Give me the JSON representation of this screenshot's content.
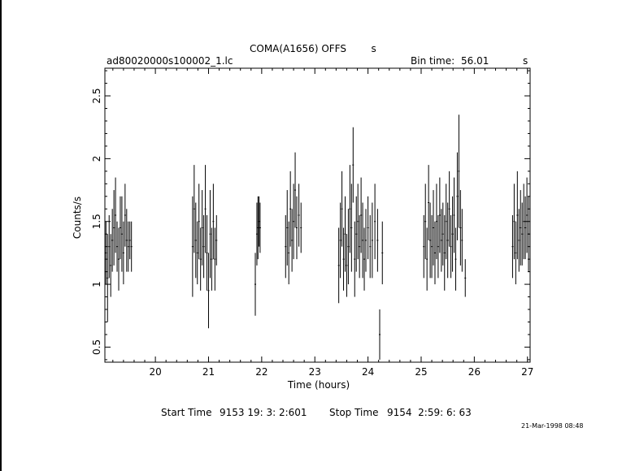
{
  "header": {
    "title": "COMA(A1656) OFFS        s",
    "file_name": "ad80020000s100002_1.lc",
    "bin_time_label": "Bin time:",
    "bin_time_value": "56.01",
    "bin_time_unit": "s"
  },
  "footer": {
    "start_label": "Start Time",
    "start_value": "9153 19: 3: 2:601",
    "stop_label": "Stop Time",
    "stop_value": "9154  2:59: 6: 63",
    "timestamp": "21-Mar-1998 08:48"
  },
  "chart_data": {
    "type": "scatter",
    "title": "COMA(A1656) OFFS        s",
    "xlabel": "Time (hours)",
    "ylabel": "Counts/s",
    "xlim": [
      19.05,
      27.05
    ],
    "ylim": [
      0.38,
      2.72
    ],
    "xticks": [
      20,
      21,
      22,
      23,
      24,
      25,
      26,
      27
    ],
    "xtick_labels": [
      "20",
      "21",
      "22",
      "23",
      "24",
      "25",
      "26",
      "27"
    ],
    "yticks": [
      0.5,
      1,
      1.5,
      2,
      2.5
    ],
    "ytick_labels": [
      "0.5",
      "1",
      "1.5",
      "2",
      "2.5"
    ],
    "grid": false,
    "error_bars": true,
    "series": [
      {
        "points": [
          {
            "x": 19.07,
            "y": 1.25,
            "err": 0.25
          },
          {
            "x": 19.1,
            "y": 1.05,
            "err": 0.35
          },
          {
            "x": 19.13,
            "y": 1.3,
            "err": 0.25
          },
          {
            "x": 19.16,
            "y": 1.15,
            "err": 0.25
          },
          {
            "x": 19.19,
            "y": 1.35,
            "err": 0.25
          },
          {
            "x": 19.22,
            "y": 1.45,
            "err": 0.3
          },
          {
            "x": 19.25,
            "y": 1.55,
            "err": 0.3
          },
          {
            "x": 19.28,
            "y": 1.3,
            "err": 0.2
          },
          {
            "x": 19.31,
            "y": 1.2,
            "err": 0.25
          },
          {
            "x": 19.34,
            "y": 1.45,
            "err": 0.25
          },
          {
            "x": 19.37,
            "y": 1.4,
            "err": 0.3
          },
          {
            "x": 19.4,
            "y": 1.25,
            "err": 0.25
          },
          {
            "x": 19.43,
            "y": 1.55,
            "err": 0.25
          },
          {
            "x": 19.46,
            "y": 1.35,
            "err": 0.25
          },
          {
            "x": 19.49,
            "y": 1.3,
            "err": 0.2
          },
          {
            "x": 19.52,
            "y": 1.35,
            "err": 0.15
          },
          {
            "x": 19.55,
            "y": 1.3,
            "err": 0.2
          },
          {
            "x": 20.7,
            "y": 1.3,
            "err": 0.4
          },
          {
            "x": 20.73,
            "y": 1.6,
            "err": 0.35
          },
          {
            "x": 20.76,
            "y": 1.35,
            "err": 0.3
          },
          {
            "x": 20.79,
            "y": 1.25,
            "err": 0.25
          },
          {
            "x": 20.82,
            "y": 1.5,
            "err": 0.3
          },
          {
            "x": 20.85,
            "y": 1.2,
            "err": 0.25
          },
          {
            "x": 20.88,
            "y": 1.45,
            "err": 0.3
          },
          {
            "x": 20.91,
            "y": 1.3,
            "err": 0.25
          },
          {
            "x": 20.94,
            "y": 1.6,
            "err": 0.35
          },
          {
            "x": 20.97,
            "y": 1.25,
            "err": 0.3
          },
          {
            "x": 21.0,
            "y": 0.95,
            "err": 0.3
          },
          {
            "x": 21.03,
            "y": 1.4,
            "err": 0.35
          },
          {
            "x": 21.06,
            "y": 1.2,
            "err": 0.25
          },
          {
            "x": 21.09,
            "y": 1.5,
            "err": 0.3
          },
          {
            "x": 21.12,
            "y": 1.2,
            "err": 0.25
          },
          {
            "x": 21.15,
            "y": 1.35,
            "err": 0.2
          },
          {
            "x": 21.88,
            "y": 1.0,
            "err": 0.25
          },
          {
            "x": 21.91,
            "y": 1.4,
            "err": 0.25
          },
          {
            "x": 21.93,
            "y": 1.45,
            "err": 0.25
          },
          {
            "x": 21.95,
            "y": 1.5,
            "err": 0.2
          },
          {
            "x": 21.97,
            "y": 1.45,
            "err": 0.2
          },
          {
            "x": 22.45,
            "y": 1.3,
            "err": 0.25
          },
          {
            "x": 22.48,
            "y": 1.45,
            "err": 0.3
          },
          {
            "x": 22.51,
            "y": 1.25,
            "err": 0.25
          },
          {
            "x": 22.54,
            "y": 1.6,
            "err": 0.3
          },
          {
            "x": 22.57,
            "y": 1.35,
            "err": 0.25
          },
          {
            "x": 22.6,
            "y": 1.5,
            "err": 0.3
          },
          {
            "x": 22.63,
            "y": 1.75,
            "err": 0.3
          },
          {
            "x": 22.66,
            "y": 1.45,
            "err": 0.25
          },
          {
            "x": 22.7,
            "y": 1.55,
            "err": 0.25
          },
          {
            "x": 22.74,
            "y": 1.45,
            "err": 0.2
          },
          {
            "x": 23.45,
            "y": 1.15,
            "err": 0.3
          },
          {
            "x": 23.48,
            "y": 1.35,
            "err": 0.3
          },
          {
            "x": 23.51,
            "y": 1.6,
            "err": 0.3
          },
          {
            "x": 23.54,
            "y": 1.2,
            "err": 0.25
          },
          {
            "x": 23.57,
            "y": 1.4,
            "err": 0.3
          },
          {
            "x": 23.6,
            "y": 1.15,
            "err": 0.25
          },
          {
            "x": 23.63,
            "y": 1.3,
            "err": 0.3
          },
          {
            "x": 23.66,
            "y": 1.6,
            "err": 0.35
          },
          {
            "x": 23.69,
            "y": 1.45,
            "err": 0.35
          },
          {
            "x": 23.72,
            "y": 1.95,
            "err": 0.3
          },
          {
            "x": 23.75,
            "y": 1.2,
            "err": 0.3
          },
          {
            "x": 23.78,
            "y": 1.4,
            "err": 0.3
          },
          {
            "x": 23.81,
            "y": 1.5,
            "err": 0.3
          },
          {
            "x": 23.84,
            "y": 1.3,
            "err": 0.25
          },
          {
            "x": 23.87,
            "y": 1.55,
            "err": 0.3
          },
          {
            "x": 23.9,
            "y": 1.35,
            "err": 0.3
          },
          {
            "x": 23.93,
            "y": 1.2,
            "err": 0.25
          },
          {
            "x": 23.96,
            "y": 1.35,
            "err": 0.25
          },
          {
            "x": 24.0,
            "y": 1.45,
            "err": 0.25
          },
          {
            "x": 24.04,
            "y": 1.3,
            "err": 0.25
          },
          {
            "x": 24.08,
            "y": 1.35,
            "err": 0.3
          },
          {
            "x": 24.13,
            "y": 1.5,
            "err": 0.3
          },
          {
            "x": 24.18,
            "y": 1.35,
            "err": 0.25
          },
          {
            "x": 24.22,
            "y": 0.6,
            "err": 0.2
          },
          {
            "x": 24.27,
            "y": 1.25,
            "err": 0.25
          },
          {
            "x": 25.05,
            "y": 1.3,
            "err": 0.25
          },
          {
            "x": 25.08,
            "y": 1.5,
            "err": 0.3
          },
          {
            "x": 25.11,
            "y": 1.2,
            "err": 0.25
          },
          {
            "x": 25.14,
            "y": 1.65,
            "err": 0.3
          },
          {
            "x": 25.17,
            "y": 1.35,
            "err": 0.3
          },
          {
            "x": 25.2,
            "y": 1.3,
            "err": 0.25
          },
          {
            "x": 25.23,
            "y": 1.45,
            "err": 0.3
          },
          {
            "x": 25.26,
            "y": 1.25,
            "err": 0.25
          },
          {
            "x": 25.29,
            "y": 1.5,
            "err": 0.3
          },
          {
            "x": 25.32,
            "y": 1.3,
            "err": 0.25
          },
          {
            "x": 25.35,
            "y": 1.55,
            "err": 0.3
          },
          {
            "x": 25.38,
            "y": 1.35,
            "err": 0.25
          },
          {
            "x": 25.41,
            "y": 1.4,
            "err": 0.25
          },
          {
            "x": 25.44,
            "y": 1.25,
            "err": 0.3
          },
          {
            "x": 25.47,
            "y": 1.5,
            "err": 0.3
          },
          {
            "x": 25.5,
            "y": 1.35,
            "err": 0.3
          },
          {
            "x": 25.53,
            "y": 1.6,
            "err": 0.3
          },
          {
            "x": 25.56,
            "y": 1.3,
            "err": 0.25
          },
          {
            "x": 25.59,
            "y": 1.4,
            "err": 0.3
          },
          {
            "x": 25.62,
            "y": 1.55,
            "err": 0.3
          },
          {
            "x": 25.65,
            "y": 1.2,
            "err": 0.25
          },
          {
            "x": 25.68,
            "y": 1.7,
            "err": 0.35
          },
          {
            "x": 25.71,
            "y": 1.9,
            "err": 0.45
          },
          {
            "x": 25.74,
            "y": 1.45,
            "err": 0.3
          },
          {
            "x": 25.77,
            "y": 1.35,
            "err": 0.25
          },
          {
            "x": 25.83,
            "y": 1.05,
            "err": 0.15
          },
          {
            "x": 26.72,
            "y": 1.3,
            "err": 0.25
          },
          {
            "x": 26.75,
            "y": 1.5,
            "err": 0.3
          },
          {
            "x": 26.78,
            "y": 1.25,
            "err": 0.25
          },
          {
            "x": 26.81,
            "y": 1.55,
            "err": 0.35
          },
          {
            "x": 26.84,
            "y": 1.35,
            "err": 0.25
          },
          {
            "x": 26.87,
            "y": 1.45,
            "err": 0.3
          },
          {
            "x": 26.9,
            "y": 1.4,
            "err": 0.25
          },
          {
            "x": 26.93,
            "y": 1.5,
            "err": 0.3
          },
          {
            "x": 26.96,
            "y": 1.45,
            "err": 0.25
          },
          {
            "x": 26.99,
            "y": 1.55,
            "err": 0.3
          },
          {
            "x": 27.02,
            "y": 1.4,
            "err": 0.3
          }
        ]
      }
    ]
  }
}
